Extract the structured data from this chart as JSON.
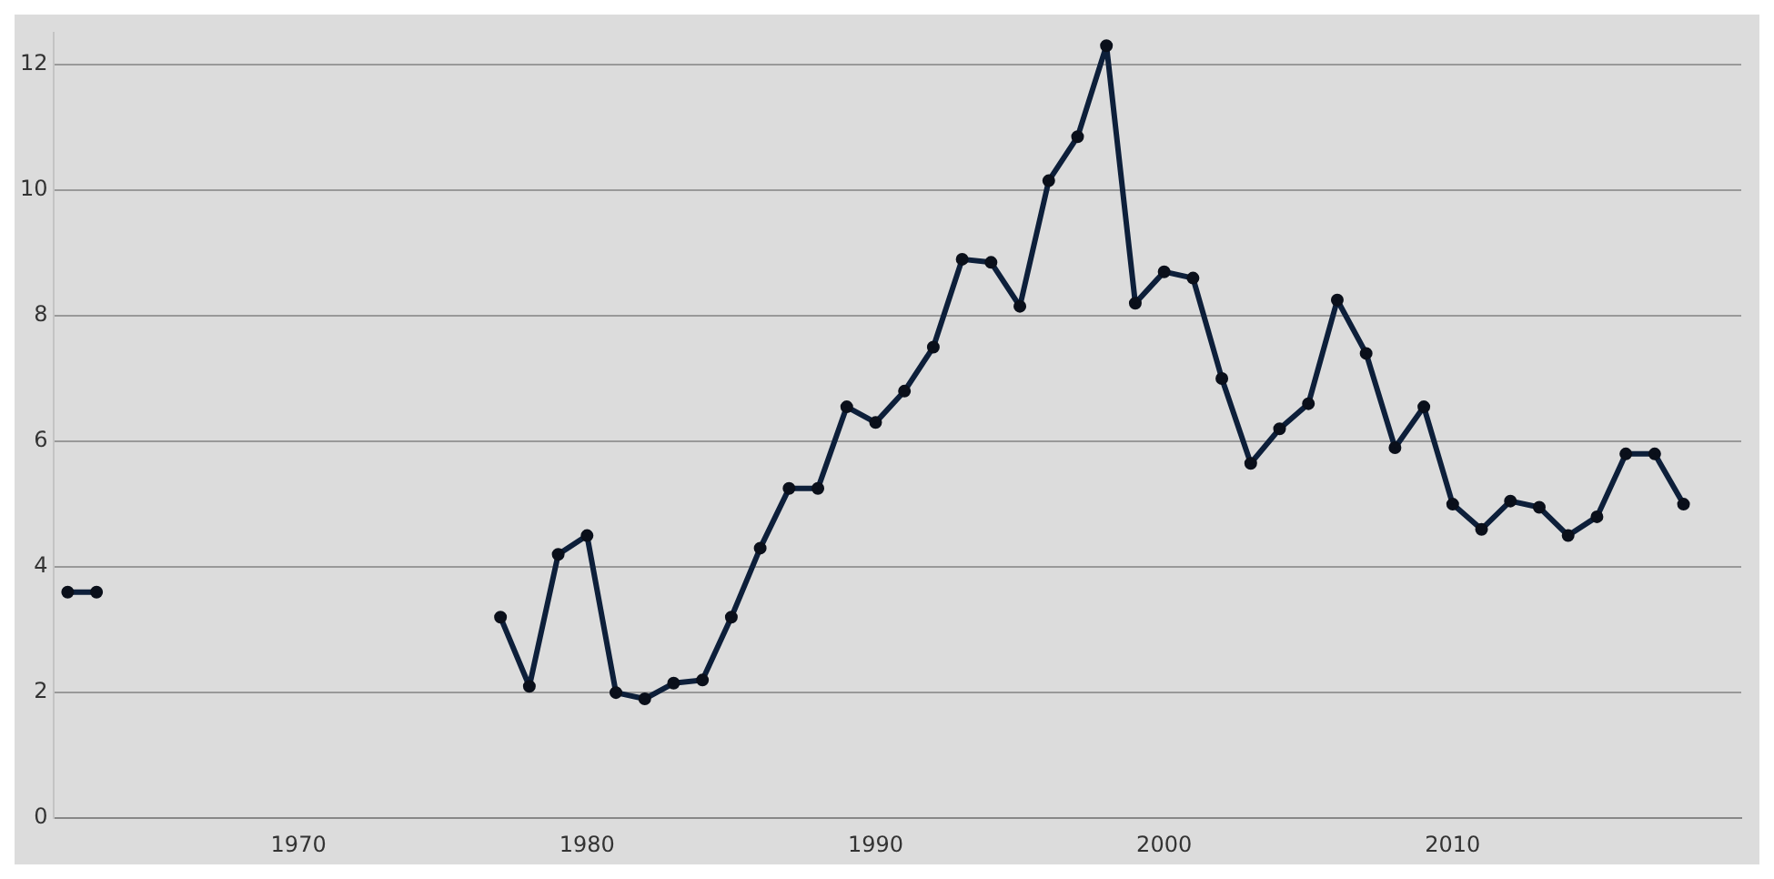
{
  "chart_data": {
    "type": "line",
    "x": [
      1962,
      1963,
      1964,
      1965,
      1966,
      1967,
      1968,
      1969,
      1970,
      1971,
      1972,
      1973,
      1974,
      1975,
      1976,
      1977,
      1978,
      1979,
      1980,
      1981,
      1982,
      1983,
      1984,
      1985,
      1986,
      1987,
      1988,
      1989,
      1990,
      1991,
      1992,
      1993,
      1994,
      1995,
      1996,
      1997,
      1998,
      1999,
      2000,
      2001,
      2002,
      2003,
      2004,
      2005,
      2006,
      2007,
      2008,
      2009,
      2010,
      2011,
      2012,
      2013,
      2014,
      2015,
      2016,
      2017,
      2018
    ],
    "series": [
      {
        "color": "#0d1f3a",
        "values": [
          3.6,
          3.6,
          null,
          null,
          null,
          null,
          null,
          null,
          null,
          null,
          null,
          null,
          null,
          null,
          null,
          3.2,
          2.1,
          4.2,
          4.5,
          2.0,
          1.9,
          2.15,
          2.2,
          3.2,
          4.3,
          5.25,
          5.25,
          6.55,
          6.3,
          6.8,
          7.5,
          8.9,
          8.85,
          8.15,
          10.15,
          10.85,
          12.3,
          8.2,
          8.7,
          8.6,
          7.0,
          5.65,
          6.2,
          6.6,
          8.25,
          7.4,
          5.9,
          6.55,
          5.0,
          4.6,
          5.05,
          4.95,
          4.5,
          4.8,
          5.8,
          5.8,
          5.0
        ]
      }
    ],
    "xlim": [
      1961.5,
      2020
    ],
    "xticks": [
      1970,
      1980,
      1990,
      2000,
      2010
    ],
    "ylim": [
      0,
      12.5
    ],
    "yticks": [
      0,
      2,
      4,
      6,
      8,
      10,
      12
    ],
    "grid": "y",
    "legend": false,
    "marker": "circle",
    "line_style": "solid"
  }
}
